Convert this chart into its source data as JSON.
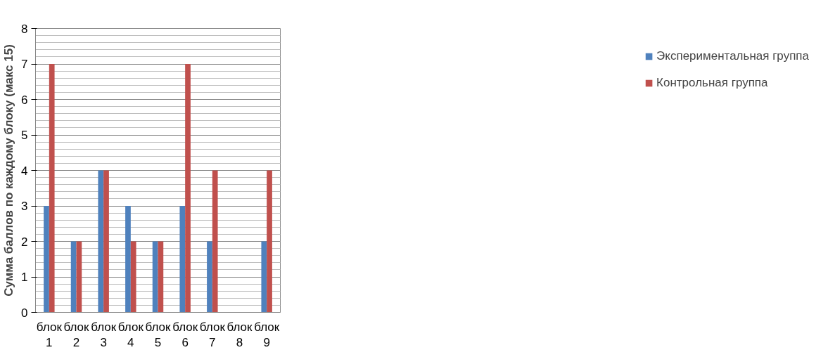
{
  "chart_data": {
    "type": "bar",
    "ylabel": "Сумма баллов по каждому блоку (макс 15)",
    "categories": [
      "блок 1",
      "блок 2",
      "блок 3",
      "блок 4",
      "блок 5",
      "блок 6",
      "блок 7",
      "блок 8",
      "блок 9"
    ],
    "series": [
      {
        "name": "Экспериментальная группа",
        "color": "#4f81bd",
        "values": [
          3,
          2,
          4,
          3,
          2,
          3,
          2,
          0,
          2
        ]
      },
      {
        "name": "Контрольная группа",
        "color": "#c0504d",
        "values": [
          7,
          2,
          4,
          2,
          2,
          7,
          4,
          0,
          4
        ]
      }
    ],
    "ylim": [
      0,
      8
    ],
    "yticks": [
      0,
      1,
      2,
      3,
      4,
      5,
      6,
      7,
      8
    ],
    "grid": "y",
    "legend": "right"
  }
}
